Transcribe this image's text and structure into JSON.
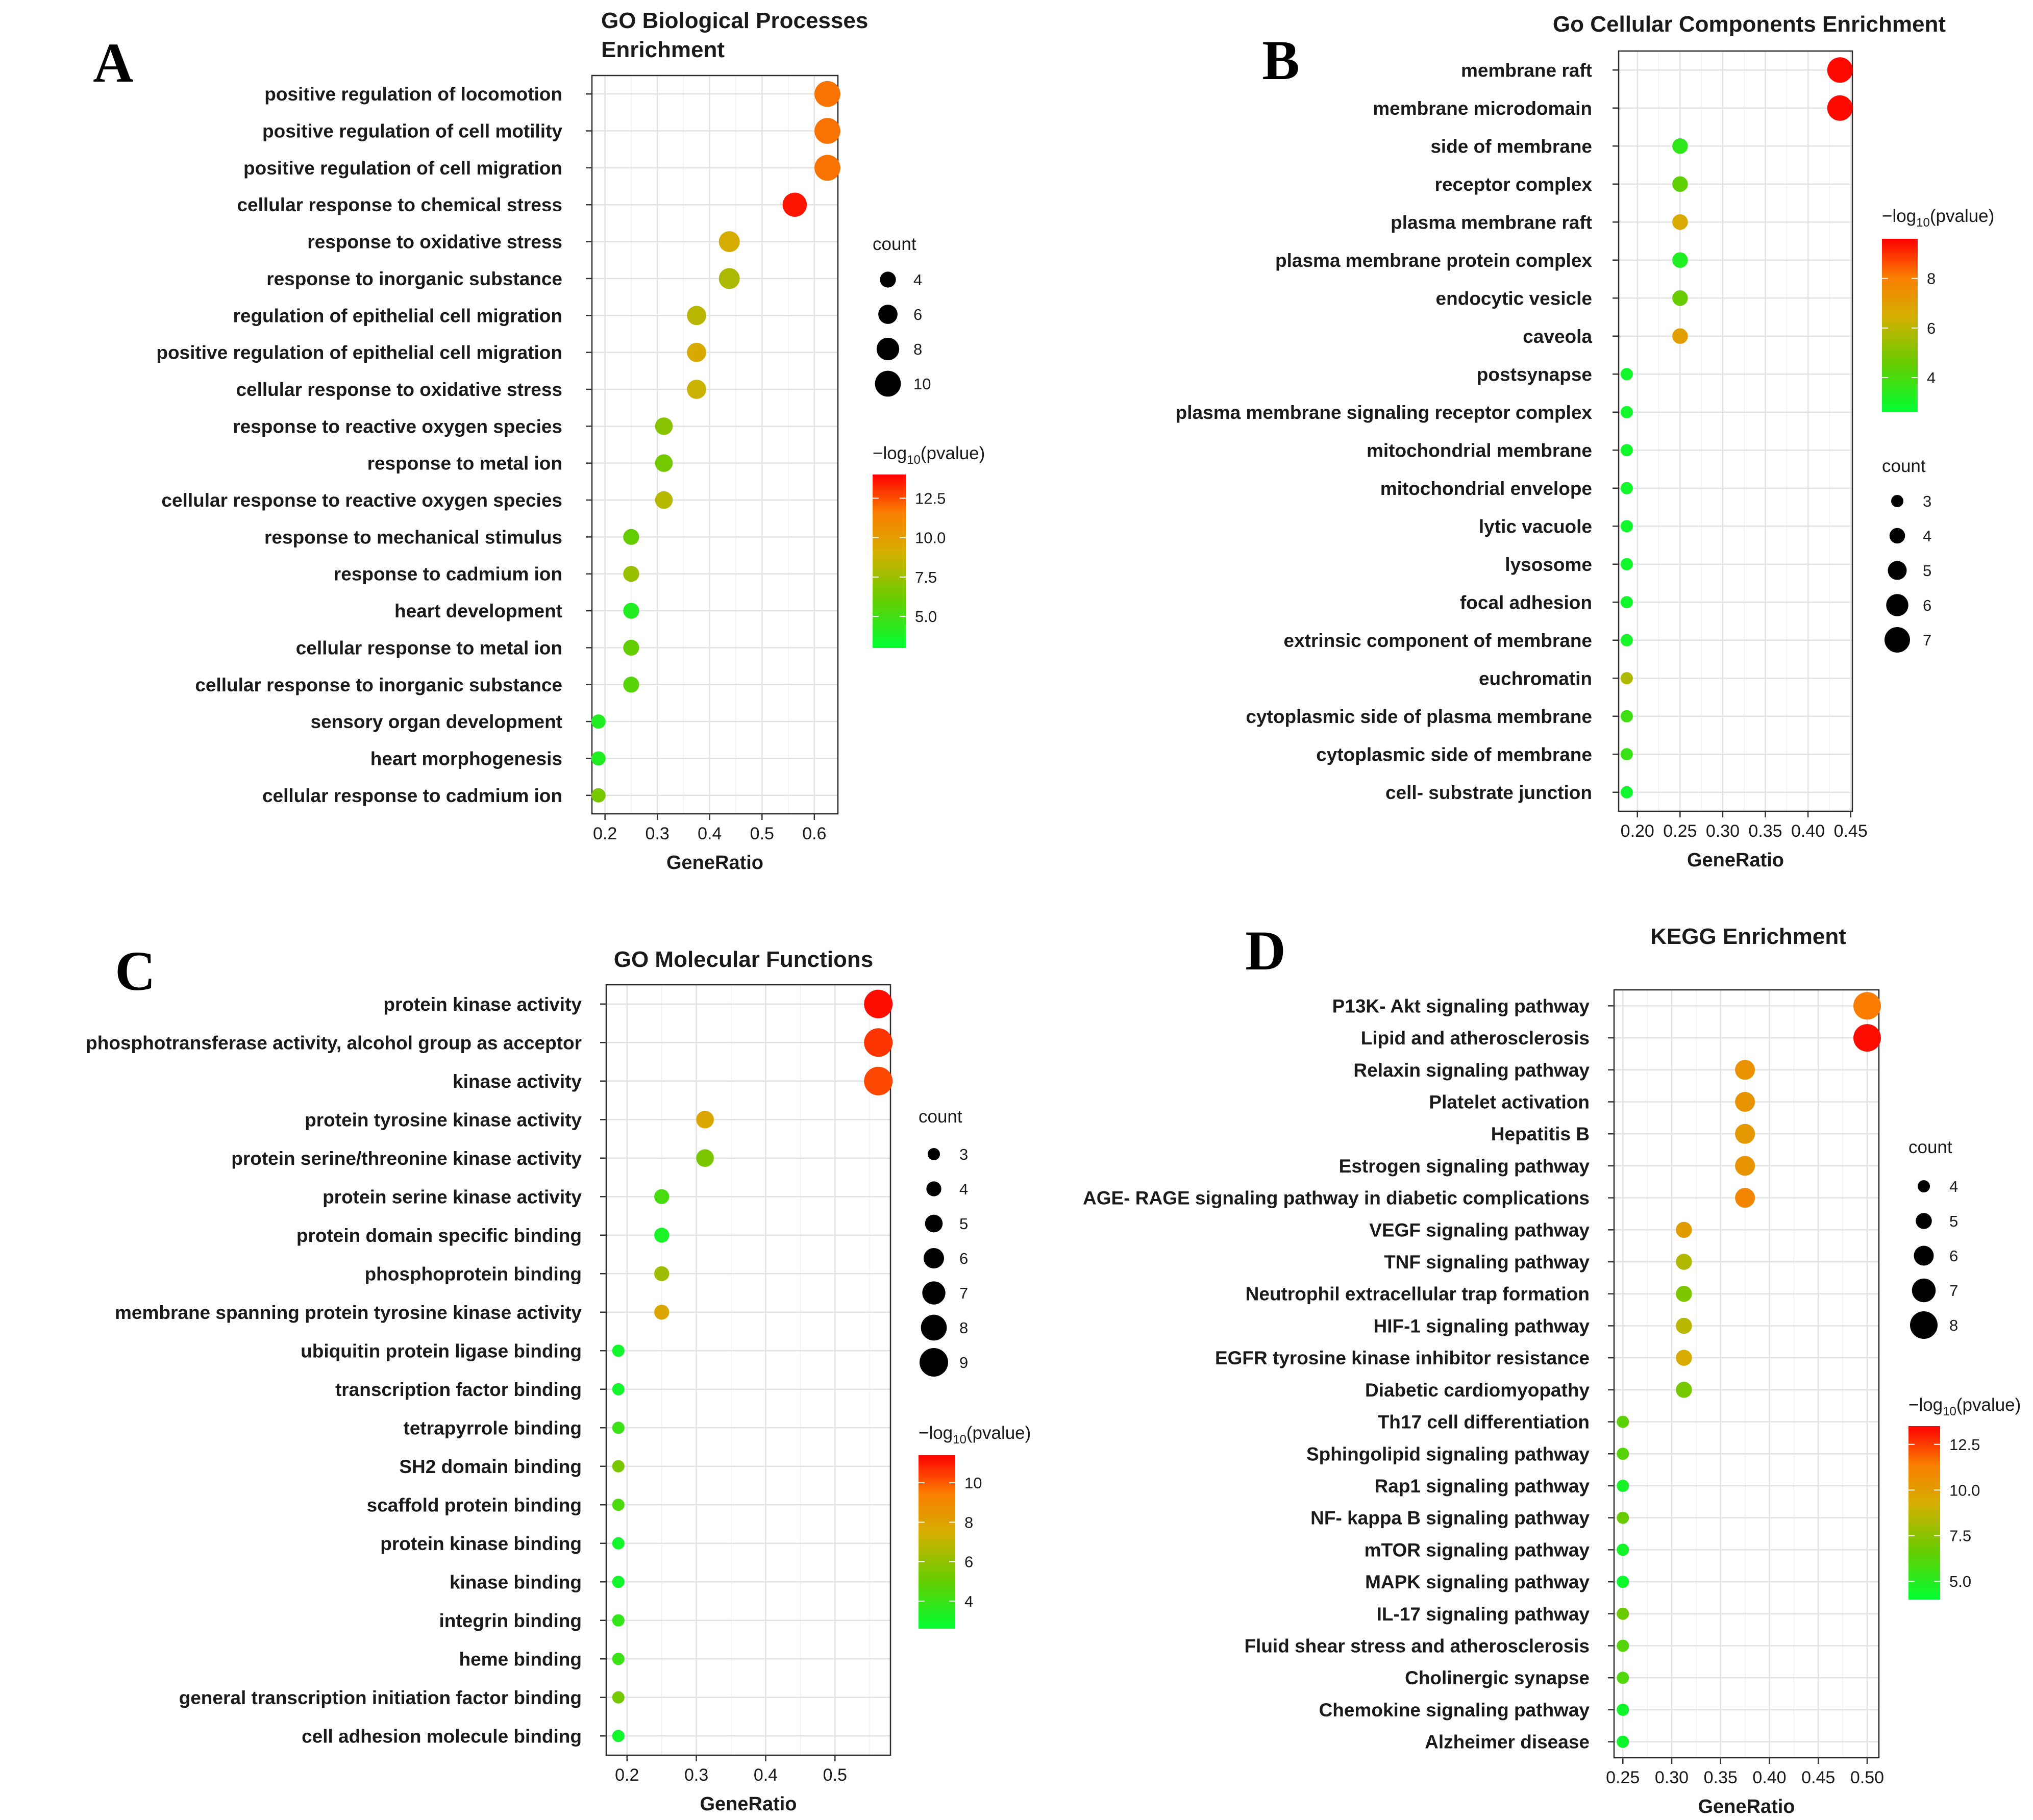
{
  "chart_data": [
    {
      "id": "A",
      "type": "scatter",
      "panel_label": "A",
      "title": [
        "GO Biological Processes",
        "Enrichment"
      ],
      "xlabel": "GeneRatio",
      "xlim": [
        0.175,
        0.645
      ],
      "xticks": [
        0.2,
        0.3,
        0.4,
        0.5,
        0.6
      ],
      "xtick_labels": [
        "0.2",
        "0.3",
        "0.4",
        "0.5",
        "0.6"
      ],
      "color_legend": {
        "title": "−log10(pvalue)",
        "min": 3.0,
        "max": 14.0,
        "ticks": [
          5.0,
          7.5,
          10.0,
          12.5
        ],
        "tick_labels": [
          "5.0",
          "7.5",
          "10.0",
          "12.5"
        ]
      },
      "size_legend": {
        "title": "count",
        "values": [
          4,
          6,
          8,
          10
        ],
        "labels": [
          "4",
          "6",
          "8",
          "10"
        ]
      },
      "size_range": [
        3,
        11
      ],
      "terms": [
        {
          "label": "positive regulation of locomotion",
          "x": 0.625,
          "count": 10,
          "logp": 11.8
        },
        {
          "label": "positive regulation of cell motility",
          "x": 0.625,
          "count": 10,
          "logp": 11.8
        },
        {
          "label": "positive regulation of cell migration",
          "x": 0.625,
          "count": 10,
          "logp": 11.8
        },
        {
          "label": "cellular response to chemical stress",
          "x": 0.5625,
          "count": 9,
          "logp": 13.6
        },
        {
          "label": "response to oxidative stress",
          "x": 0.4375,
          "count": 7,
          "logp": 9.2
        },
        {
          "label": "response to inorganic substance",
          "x": 0.4375,
          "count": 7,
          "logp": 8.0
        },
        {
          "label": "regulation of epithelial cell migration",
          "x": 0.375,
          "count": 6,
          "logp": 8.3
        },
        {
          "label": "positive regulation of epithelial cell migration",
          "x": 0.375,
          "count": 6,
          "logp": 9.3
        },
        {
          "label": "cellular response to oxidative stress",
          "x": 0.375,
          "count": 6,
          "logp": 8.8
        },
        {
          "label": "response to reactive oxygen species",
          "x": 0.3125,
          "count": 5,
          "logp": 7.0
        },
        {
          "label": "response to metal ion",
          "x": 0.3125,
          "count": 5,
          "logp": 6.4
        },
        {
          "label": "cellular response to reactive oxygen species",
          "x": 0.3125,
          "count": 5,
          "logp": 8.2
        },
        {
          "label": "response to mechanical stimulus",
          "x": 0.25,
          "count": 4,
          "logp": 6.0
        },
        {
          "label": "response to cadmium ion",
          "x": 0.25,
          "count": 4,
          "logp": 7.4
        },
        {
          "label": "heart development",
          "x": 0.25,
          "count": 4,
          "logp": 4.0
        },
        {
          "label": "cellular response to metal ion",
          "x": 0.25,
          "count": 4,
          "logp": 6.0
        },
        {
          "label": "cellular response to inorganic substance",
          "x": 0.25,
          "count": 4,
          "logp": 5.6
        },
        {
          "label": "sensory organ development",
          "x": 0.1875,
          "count": 3,
          "logp": 4.0
        },
        {
          "label": "heart morphogenesis",
          "x": 0.1875,
          "count": 3,
          "logp": 4.0
        },
        {
          "label": "cellular response to cadmium ion",
          "x": 0.1875,
          "count": 3,
          "logp": 6.6
        }
      ]
    },
    {
      "id": "B",
      "type": "scatter",
      "panel_label": "B",
      "title": [
        "Go Cellular Components Enrichment"
      ],
      "xlabel": "GeneRatio",
      "xlim": [
        0.178,
        0.452
      ],
      "xticks": [
        0.2,
        0.25,
        0.3,
        0.35,
        0.4,
        0.45
      ],
      "xtick_labels": [
        "0.20",
        "0.25",
        "0.30",
        "0.35",
        "0.40",
        "0.45"
      ],
      "color_legend": {
        "title": "−log10(pvalue)",
        "min": 2.6,
        "max": 9.6,
        "ticks": [
          4,
          6,
          8
        ],
        "tick_labels": [
          "4",
          "6",
          "8"
        ]
      },
      "size_legend": {
        "title": "count",
        "values": [
          3,
          4,
          5,
          6,
          7
        ],
        "labels": [
          "3",
          "4",
          "5",
          "6",
          "7"
        ]
      },
      "size_range": [
        3,
        7
      ],
      "terms": [
        {
          "label": "membrane raft",
          "x": 0.4375,
          "count": 7,
          "logp": 9.5
        },
        {
          "label": "membrane microdomain",
          "x": 0.4375,
          "count": 7,
          "logp": 9.5
        },
        {
          "label": "side of membrane",
          "x": 0.25,
          "count": 4,
          "logp": 3.5
        },
        {
          "label": "receptor complex",
          "x": 0.25,
          "count": 4,
          "logp": 4.4
        },
        {
          "label": "plasma membrane raft",
          "x": 0.25,
          "count": 4,
          "logp": 6.6
        },
        {
          "label": "plasma membrane protein complex",
          "x": 0.25,
          "count": 4,
          "logp": 3.2
        },
        {
          "label": "endocytic vesicle",
          "x": 0.25,
          "count": 4,
          "logp": 4.6
        },
        {
          "label": "caveola",
          "x": 0.25,
          "count": 4,
          "logp": 7.0
        },
        {
          "label": "postsynapse",
          "x": 0.1875,
          "count": 3,
          "logp": 2.9
        },
        {
          "label": "plasma membrane signaling receptor complex",
          "x": 0.1875,
          "count": 3,
          "logp": 2.9
        },
        {
          "label": "mitochondrial membrane",
          "x": 0.1875,
          "count": 3,
          "logp": 2.9
        },
        {
          "label": "mitochondrial envelope",
          "x": 0.1875,
          "count": 3,
          "logp": 2.9
        },
        {
          "label": "lytic vacuole",
          "x": 0.1875,
          "count": 3,
          "logp": 2.9
        },
        {
          "label": "lysosome",
          "x": 0.1875,
          "count": 3,
          "logp": 2.9
        },
        {
          "label": "focal adhesion",
          "x": 0.1875,
          "count": 3,
          "logp": 2.9
        },
        {
          "label": "extrinsic component of membrane",
          "x": 0.1875,
          "count": 3,
          "logp": 3.0
        },
        {
          "label": "euchromatin",
          "x": 0.1875,
          "count": 3,
          "logp": 5.8
        },
        {
          "label": "cytoplasmic side of plasma membrane",
          "x": 0.1875,
          "count": 3,
          "logp": 3.8
        },
        {
          "label": "cytoplasmic side of membrane",
          "x": 0.1875,
          "count": 3,
          "logp": 3.7
        },
        {
          "label": "cell- substrate junction",
          "x": 0.1875,
          "count": 3,
          "logp": 2.9
        }
      ]
    },
    {
      "id": "C",
      "type": "scatter",
      "panel_label": "C",
      "title": [
        "GO Molecular Functions"
      ],
      "xlabel": "GeneRatio",
      "xlim": [
        0.17,
        0.58
      ],
      "xticks": [
        0.2,
        0.3,
        0.4,
        0.5
      ],
      "xtick_labels": [
        "0.2",
        "0.3",
        "0.4",
        "0.5"
      ],
      "color_legend": {
        "title": "−log10(pvalue)",
        "min": 2.6,
        "max": 11.4,
        "ticks": [
          4,
          6,
          8,
          10
        ],
        "tick_labels": [
          "4",
          "6",
          "8",
          "10"
        ]
      },
      "size_legend": {
        "title": "count",
        "values": [
          3,
          4,
          5,
          6,
          7,
          8,
          9
        ],
        "labels": [
          "3",
          "4",
          "5",
          "6",
          "7",
          "8",
          "9"
        ]
      },
      "size_range": [
        3,
        9
      ],
      "terms": [
        {
          "label": "protein kinase activity",
          "x": 0.5625,
          "count": 9,
          "logp": 11.2
        },
        {
          "label": "phosphotransferase activity, alcohol group as acceptor",
          "x": 0.5625,
          "count": 9,
          "logp": 10.6
        },
        {
          "label": "kinase activity",
          "x": 0.5625,
          "count": 9,
          "logp": 10.3
        },
        {
          "label": "protein tyrosine kinase activity",
          "x": 0.3125,
          "count": 5,
          "logp": 7.8
        },
        {
          "label": "protein serine/threonine kinase activity",
          "x": 0.3125,
          "count": 5,
          "logp": 5.5
        },
        {
          "label": "protein serine kinase activity",
          "x": 0.25,
          "count": 4,
          "logp": 4.3
        },
        {
          "label": "protein domain specific binding",
          "x": 0.25,
          "count": 4,
          "logp": 3.2
        },
        {
          "label": "phosphoprotein binding",
          "x": 0.25,
          "count": 4,
          "logp": 6.3
        },
        {
          "label": "membrane spanning protein tyrosine kinase activity",
          "x": 0.25,
          "count": 4,
          "logp": 7.8
        },
        {
          "label": "ubiquitin protein ligase binding",
          "x": 0.1875,
          "count": 3,
          "logp": 3.0
        },
        {
          "label": "transcription factor binding",
          "x": 0.1875,
          "count": 3,
          "logp": 3.0
        },
        {
          "label": "tetrapyrrole binding",
          "x": 0.1875,
          "count": 3,
          "logp": 4.0
        },
        {
          "label": "SH2 domain binding",
          "x": 0.1875,
          "count": 3,
          "logp": 5.5
        },
        {
          "label": "scaffold protein binding",
          "x": 0.1875,
          "count": 3,
          "logp": 4.4
        },
        {
          "label": "protein kinase binding",
          "x": 0.1875,
          "count": 3,
          "logp": 3.0
        },
        {
          "label": "kinase binding",
          "x": 0.1875,
          "count": 3,
          "logp": 3.0
        },
        {
          "label": "integrin binding",
          "x": 0.1875,
          "count": 3,
          "logp": 3.8
        },
        {
          "label": "heme binding",
          "x": 0.1875,
          "count": 3,
          "logp": 4.0
        },
        {
          "label": "general transcription initiation factor binding",
          "x": 0.1875,
          "count": 3,
          "logp": 5.4
        },
        {
          "label": "cell adhesion molecule binding",
          "x": 0.1875,
          "count": 3,
          "logp": 3.0
        }
      ]
    },
    {
      "id": "D",
      "type": "scatter",
      "panel_label": "D",
      "title": [
        "KEGG Enrichment"
      ],
      "xlabel": "GeneRatio",
      "xlim": [
        0.241,
        0.512
      ],
      "xticks": [
        0.25,
        0.3,
        0.35,
        0.4,
        0.45,
        0.5
      ],
      "xtick_labels": [
        "0.25",
        "0.30",
        "0.35",
        "0.40",
        "0.45",
        "0.50"
      ],
      "color_legend": {
        "title": "−log10(pvalue)",
        "min": 4.0,
        "max": 13.5,
        "ticks": [
          5.0,
          7.5,
          10.0,
          12.5
        ],
        "tick_labels": [
          "5.0",
          "7.5",
          "10.0",
          "12.5"
        ]
      },
      "size_legend": {
        "title": "count",
        "values": [
          4,
          5,
          6,
          7,
          8
        ],
        "labels": [
          "4",
          "5",
          "6",
          "7",
          "8"
        ]
      },
      "size_range": [
        4,
        8
      ],
      "terms": [
        {
          "label": "P13K- Akt signaling pathway",
          "x": 0.5,
          "count": 8,
          "logp": 11.4
        },
        {
          "label": "Lipid and atherosclerosis",
          "x": 0.5,
          "count": 8,
          "logp": 13.3
        },
        {
          "label": "Relaxin signaling pathway",
          "x": 0.375,
          "count": 6,
          "logp": 10.5
        },
        {
          "label": "Platelet activation",
          "x": 0.375,
          "count": 6,
          "logp": 10.4
        },
        {
          "label": "Hepatitis B",
          "x": 0.375,
          "count": 6,
          "logp": 10.2
        },
        {
          "label": "Estrogen signaling pathway",
          "x": 0.375,
          "count": 6,
          "logp": 10.4
        },
        {
          "label": "AGE- RAGE signaling pathway in diabetic complications",
          "x": 0.375,
          "count": 6,
          "logp": 11.0
        },
        {
          "label": "VEGF signaling pathway",
          "x": 0.3125,
          "count": 5,
          "logp": 10.0
        },
        {
          "label": "TNF signaling pathway",
          "x": 0.3125,
          "count": 5,
          "logp": 8.4
        },
        {
          "label": "Neutrophil extracellular trap formation",
          "x": 0.3125,
          "count": 5,
          "logp": 7.2
        },
        {
          "label": "HIF-1 signaling pathway",
          "x": 0.3125,
          "count": 5,
          "logp": 8.6
        },
        {
          "label": "EGFR tyrosine kinase inhibitor resistance",
          "x": 0.3125,
          "count": 5,
          "logp": 9.4
        },
        {
          "label": "Diabetic cardiomyopathy",
          "x": 0.3125,
          "count": 5,
          "logp": 7.0
        },
        {
          "label": "Th17 cell differentiation",
          "x": 0.25,
          "count": 4,
          "logp": 6.4
        },
        {
          "label": "Sphingolipid signaling pathway",
          "x": 0.25,
          "count": 4,
          "logp": 6.3
        },
        {
          "label": "Rap1 signaling pathway",
          "x": 0.25,
          "count": 4,
          "logp": 4.6
        },
        {
          "label": "NF- kappa B signaling pathway",
          "x": 0.25,
          "count": 4,
          "logp": 6.7
        },
        {
          "label": "mTOR signaling pathway",
          "x": 0.25,
          "count": 4,
          "logp": 4.5
        },
        {
          "label": "MAPK signaling pathway",
          "x": 0.25,
          "count": 4,
          "logp": 4.3
        },
        {
          "label": "IL-17 signaling pathway",
          "x": 0.25,
          "count": 4,
          "logp": 6.8
        },
        {
          "label": "Fluid shear stress and atherosclerosis",
          "x": 0.25,
          "count": 4,
          "logp": 6.2
        },
        {
          "label": "Cholinergic synapse",
          "x": 0.25,
          "count": 4,
          "logp": 6.1
        },
        {
          "label": "Chemokine signaling pathway",
          "x": 0.25,
          "count": 4,
          "logp": 4.4
        },
        {
          "label": "Alzheimer disease",
          "x": 0.25,
          "count": 4,
          "logp": 4.4
        }
      ]
    }
  ]
}
